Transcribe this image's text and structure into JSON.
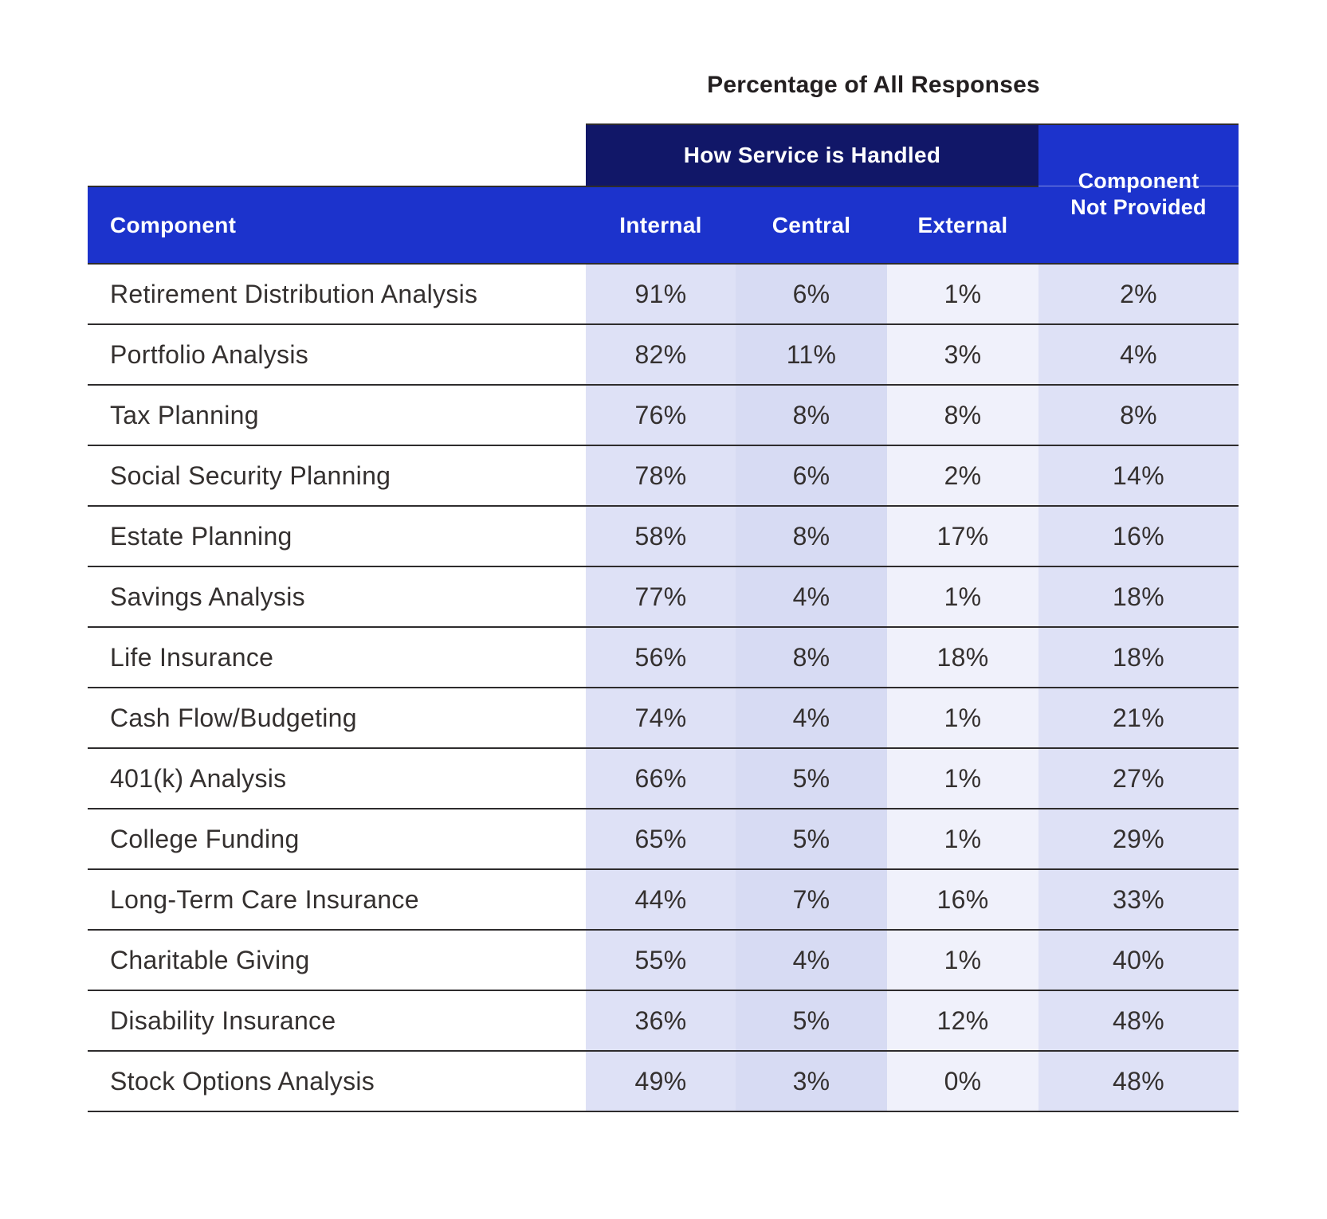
{
  "title": "Percentage of All Responses",
  "header": {
    "group": "How Service is Handled",
    "component": "Component",
    "internal": "Internal",
    "central": "Central",
    "external": "External",
    "cnp_line1": "Component",
    "cnp_line2": "Not Provided"
  },
  "rows": [
    {
      "component": "Retirement Distribution Analysis",
      "internal": "91%",
      "central": "6%",
      "external": "1%",
      "not_provided": "2%"
    },
    {
      "component": "Portfolio Analysis",
      "internal": "82%",
      "central": "11%",
      "external": "3%",
      "not_provided": "4%"
    },
    {
      "component": "Tax Planning",
      "internal": "76%",
      "central": "8%",
      "external": "8%",
      "not_provided": "8%"
    },
    {
      "component": "Social Security Planning",
      "internal": "78%",
      "central": "6%",
      "external": "2%",
      "not_provided": "14%"
    },
    {
      "component": "Estate Planning",
      "internal": "58%",
      "central": "8%",
      "external": "17%",
      "not_provided": "16%"
    },
    {
      "component": "Savings Analysis",
      "internal": "77%",
      "central": "4%",
      "external": "1%",
      "not_provided": "18%"
    },
    {
      "component": "Life Insurance",
      "internal": "56%",
      "central": "8%",
      "external": "18%",
      "not_provided": "18%"
    },
    {
      "component": "Cash Flow/Budgeting",
      "internal": "74%",
      "central": "4%",
      "external": "1%",
      "not_provided": "21%"
    },
    {
      "component": "401(k) Analysis",
      "internal": "66%",
      "central": "5%",
      "external": "1%",
      "not_provided": "27%"
    },
    {
      "component": "College Funding",
      "internal": "65%",
      "central": "5%",
      "external": "1%",
      "not_provided": "29%"
    },
    {
      "component": "Long-Term Care Insurance",
      "internal": "44%",
      "central": "7%",
      "external": "16%",
      "not_provided": "33%"
    },
    {
      "component": "Charitable Giving",
      "internal": "55%",
      "central": "4%",
      "external": "1%",
      "not_provided": "40%"
    },
    {
      "component": "Disability Insurance",
      "internal": "36%",
      "central": "5%",
      "external": "12%",
      "not_provided": "48%"
    },
    {
      "component": "Stock Options Analysis",
      "internal": "49%",
      "central": "3%",
      "external": "0%",
      "not_provided": "48%"
    }
  ],
  "colors": {
    "group_band_navy": "#111768",
    "header_blue": "#1c33cc",
    "col_internal_bg": "#dee1f6",
    "col_central_bg": "#d7dbf3",
    "col_external_bg": "#f0f1fb",
    "col_not_provided_bg": "#dee1f6",
    "rule_line": "#2e2c2d",
    "body_text": "#34302f",
    "header_text": "#ffffff",
    "title_text": "#231f20"
  },
  "chart_data": {
    "type": "table",
    "title": "Percentage of All Responses",
    "column_groups": [
      {
        "label": "How Service is Handled",
        "columns": [
          "Internal",
          "Central",
          "External"
        ]
      },
      {
        "label": "Component Not Provided",
        "columns": [
          "Component Not Provided"
        ]
      }
    ],
    "columns": [
      "Component",
      "Internal",
      "Central",
      "External",
      "Component Not Provided"
    ],
    "unit": "percent",
    "rows": [
      [
        "Retirement Distribution Analysis",
        91,
        6,
        1,
        2
      ],
      [
        "Portfolio Analysis",
        82,
        11,
        3,
        4
      ],
      [
        "Tax Planning",
        76,
        8,
        8,
        8
      ],
      [
        "Social Security Planning",
        78,
        6,
        2,
        14
      ],
      [
        "Estate Planning",
        58,
        8,
        17,
        16
      ],
      [
        "Savings Analysis",
        77,
        4,
        1,
        18
      ],
      [
        "Life Insurance",
        56,
        8,
        18,
        18
      ],
      [
        "Cash Flow/Budgeting",
        74,
        4,
        1,
        21
      ],
      [
        "401(k) Analysis",
        66,
        5,
        1,
        27
      ],
      [
        "College Funding",
        65,
        5,
        1,
        29
      ],
      [
        "Long-Term Care Insurance",
        44,
        7,
        16,
        33
      ],
      [
        "Charitable Giving",
        55,
        4,
        1,
        40
      ],
      [
        "Disability Insurance",
        36,
        5,
        12,
        48
      ],
      [
        "Stock Options Analysis",
        49,
        3,
        0,
        48
      ]
    ]
  }
}
